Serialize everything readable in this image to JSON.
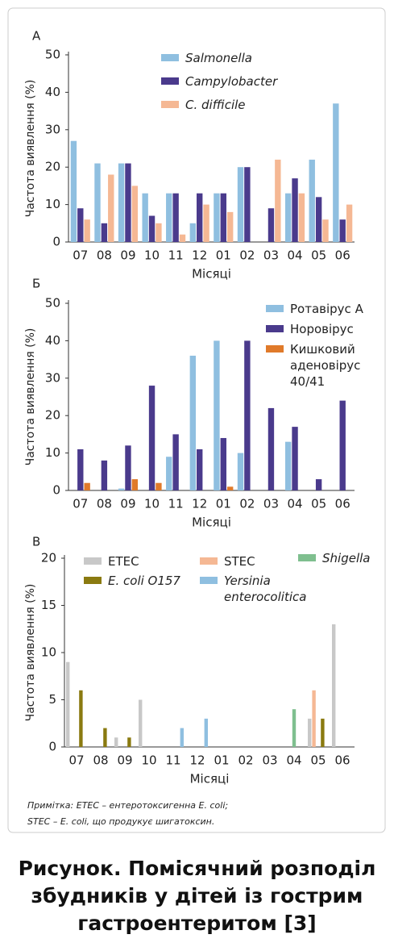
{
  "chart_data": [
    {
      "type": "bar",
      "label": "А",
      "categories": [
        "07",
        "08",
        "09",
        "10",
        "11",
        "12",
        "01",
        "02",
        "03",
        "04",
        "05",
        "06"
      ],
      "series": [
        {
          "name": "Salmonella",
          "color": "#8fbfe0",
          "values": [
            27,
            21,
            21,
            13,
            13,
            5,
            13,
            20,
            null,
            13,
            22,
            37
          ]
        },
        {
          "name": "Campylobacter",
          "color": "#4a3a8c",
          "values": [
            9,
            5,
            21,
            7,
            13,
            13,
            13,
            20,
            9,
            17,
            12,
            6
          ]
        },
        {
          "name": "C. difficile",
          "color": "#f5b894",
          "values": [
            6,
            18,
            15,
            5,
            2,
            10,
            8,
            null,
            22,
            13,
            6,
            10
          ]
        }
      ],
      "ylim": [
        0,
        50
      ],
      "yticks": [
        0,
        10,
        20,
        30,
        40,
        50
      ],
      "y_label": "Частота виявлення (%)",
      "x_label": "Місяці"
    },
    {
      "type": "bar",
      "label": "Б",
      "categories": [
        "07",
        "08",
        "09",
        "10",
        "11",
        "12",
        "01",
        "02",
        "03",
        "04",
        "05",
        "06"
      ],
      "series": [
        {
          "name": "Ротавірус А",
          "color": "#8fbfe0",
          "values": [
            null,
            null,
            0.5,
            null,
            9,
            36,
            40,
            10,
            null,
            13,
            null,
            null
          ]
        },
        {
          "name": "Норовірус",
          "color": "#4a3a8c",
          "values": [
            11,
            8,
            12,
            28,
            15,
            11,
            14,
            40,
            22,
            17,
            3,
            24
          ]
        },
        {
          "name": "Кишковий аденовірус 40/41",
          "color": "#e07a2a",
          "values": [
            2,
            null,
            3,
            2,
            null,
            null,
            1,
            null,
            null,
            null,
            null,
            null
          ]
        }
      ],
      "ylim": [
        0,
        50
      ],
      "yticks": [
        0,
        10,
        20,
        30,
        40,
        50
      ],
      "y_label": "Частота виявлення (%)",
      "x_label": "Місяці"
    },
    {
      "type": "bar",
      "label": "В",
      "categories": [
        "07",
        "08",
        "09",
        "10",
        "11",
        "12",
        "01",
        "02",
        "03",
        "04",
        "05",
        "06"
      ],
      "series": [
        {
          "name": "ETEC",
          "color": "#c8c8c8",
          "values": [
            9,
            null,
            1,
            5,
            null,
            null,
            null,
            null,
            null,
            null,
            3,
            13
          ]
        },
        {
          "name": "STEC",
          "color": "#f5b894",
          "values": [
            null,
            null,
            null,
            null,
            null,
            null,
            null,
            null,
            null,
            null,
            6,
            null
          ]
        },
        {
          "name": "Shigella",
          "color": "#7fbf8f",
          "values": [
            null,
            null,
            null,
            null,
            null,
            null,
            null,
            null,
            null,
            4,
            null,
            null
          ]
        },
        {
          "name": "E. coli O157",
          "color": "#8a7a10",
          "values": [
            6,
            2,
            1,
            null,
            null,
            null,
            null,
            null,
            null,
            null,
            3,
            null
          ]
        },
        {
          "name": "Yersinia enterocolitica",
          "color": "#8fbfe0",
          "values": [
            null,
            null,
            null,
            null,
            2,
            3,
            null,
            null,
            null,
            null,
            null,
            null
          ]
        }
      ],
      "ylim": [
        0,
        20
      ],
      "yticks": [
        0,
        5,
        10,
        15,
        20
      ],
      "y_label": "Частота виявлення (%)",
      "x_label": "Місяці"
    }
  ],
  "note": [
    "Примітка: ETEC – ентеротоксигенна E. coli;",
    "STEC – E. coli, що продукує шигатоксин."
  ],
  "caption": [
    "Рисунок. Помісячний розподіл",
    "збудників у дітей із гострим",
    "гастроентеритом [3]"
  ]
}
